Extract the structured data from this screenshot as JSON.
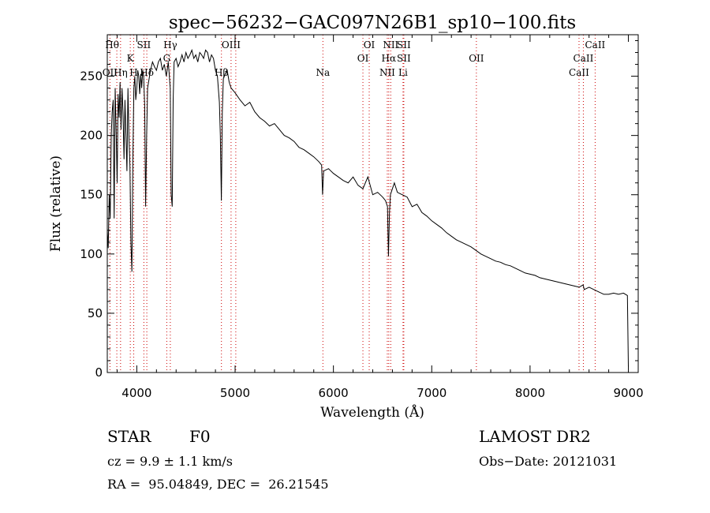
{
  "chart_data": {
    "type": "line",
    "title": "spec−56232−GAC097N26B1_sp10−100.fits",
    "xlabel": "Wavelength (Å)",
    "ylabel": "Flux (relative)",
    "xlim": [
      3700,
      9100
    ],
    "ylim": [
      0,
      285
    ],
    "xticks": [
      4000,
      5000,
      6000,
      7000,
      8000,
      9000
    ],
    "yticks": [
      0,
      50,
      100,
      150,
      200,
      250
    ],
    "grid": false,
    "series": [
      {
        "x": [
          3700,
          3710,
          3720,
          3730,
          3740,
          3750,
          3760,
          3770,
          3780,
          3790,
          3800,
          3810,
          3820,
          3830,
          3840,
          3850,
          3860,
          3870,
          3880,
          3890,
          3900,
          3910,
          3920,
          3930,
          3940,
          3950,
          3960,
          3970,
          3980,
          3990,
          4000,
          4010,
          4020,
          4030,
          4040,
          4050,
          4060,
          4070,
          4080,
          4090,
          4100,
          4110,
          4120,
          4140,
          4160,
          4180,
          4200,
          4220,
          4240,
          4260,
          4280,
          4300,
          4320,
          4340,
          4350,
          4360,
          4370,
          4380,
          4400,
          4420,
          4440,
          4460,
          4480,
          4500,
          4520,
          4540,
          4560,
          4580,
          4600,
          4620,
          4640,
          4660,
          4680,
          4700,
          4720,
          4740,
          4760,
          4780,
          4800,
          4820,
          4840,
          4850,
          4860,
          4870,
          4880,
          4900,
          4920,
          4940,
          4960,
          4980,
          5000,
          5050,
          5100,
          5150,
          5200,
          5250,
          5300,
          5350,
          5400,
          5450,
          5500,
          5550,
          5600,
          5650,
          5700,
          5750,
          5800,
          5850,
          5880,
          5890,
          5900,
          5950,
          6000,
          6050,
          6100,
          6150,
          6200,
          6250,
          6300,
          6350,
          6400,
          6450,
          6500,
          6530,
          6550,
          6560,
          6570,
          6580,
          6600,
          6620,
          6650,
          6700,
          6750,
          6800,
          6850,
          6900,
          6950,
          7000,
          7050,
          7100,
          7150,
          7200,
          7250,
          7300,
          7350,
          7400,
          7450,
          7500,
          7550,
          7600,
          7650,
          7700,
          7750,
          7800,
          7850,
          7900,
          7950,
          8000,
          8050,
          8100,
          8150,
          8200,
          8250,
          8300,
          8350,
          8400,
          8450,
          8500,
          8540,
          8550,
          8600,
          8650,
          8700,
          8750,
          8800,
          8850,
          8900,
          8950,
          8990,
          9000
        ],
        "y": [
          120,
          105,
          150,
          130,
          200,
          220,
          230,
          130,
          240,
          205,
          160,
          235,
          215,
          245,
          205,
          240,
          220,
          180,
          230,
          200,
          170,
          240,
          200,
          175,
          110,
          85,
          180,
          240,
          250,
          230,
          240,
          255,
          250,
          235,
          252,
          240,
          255,
          250,
          225,
          140,
          200,
          240,
          245,
          255,
          262,
          258,
          255,
          262,
          265,
          255,
          260,
          250,
          262,
          240,
          150,
          140,
          230,
          262,
          265,
          258,
          262,
          268,
          262,
          270,
          265,
          268,
          272,
          265,
          268,
          262,
          270,
          268,
          265,
          272,
          270,
          262,
          268,
          265,
          255,
          250,
          228,
          200,
          145,
          220,
          248,
          252,
          255,
          245,
          240,
          238,
          236,
          230,
          225,
          228,
          220,
          215,
          212,
          208,
          210,
          205,
          200,
          198,
          195,
          190,
          188,
          185,
          182,
          178,
          175,
          150,
          170,
          172,
          168,
          165,
          162,
          160,
          165,
          158,
          155,
          165,
          150,
          152,
          148,
          145,
          140,
          98,
          135,
          150,
          155,
          160,
          152,
          150,
          148,
          140,
          142,
          135,
          132,
          128,
          125,
          122,
          118,
          115,
          112,
          110,
          108,
          106,
          103,
          100,
          98,
          96,
          94,
          93,
          91,
          90,
          88,
          86,
          84,
          83,
          82,
          80,
          79,
          78,
          77,
          76,
          75,
          74,
          73,
          72,
          74,
          70,
          72,
          70,
          68,
          66,
          66,
          67,
          66,
          67,
          65,
          5
        ]
      }
    ],
    "lines": [
      {
        "wl": 3727,
        "labels": [
          {
            "text": "OII",
            "row": 3,
            "dx": 0
          }
        ]
      },
      {
        "wl": 3797,
        "labels": [
          {
            "text": "Hθ",
            "row": 1,
            "dx": -6
          }
        ]
      },
      {
        "wl": 3835,
        "labels": [
          {
            "text": "Hη",
            "row": 3,
            "dx": 0
          }
        ]
      },
      {
        "wl": 3934,
        "labels": [
          {
            "text": "K",
            "row": 2,
            "dx": 0
          }
        ]
      },
      {
        "wl": 3969,
        "labels": [
          {
            "text": "H",
            "row": 3,
            "dx": 0
          }
        ]
      },
      {
        "wl": 4072,
        "labels": [
          {
            "text": "SII",
            "row": 1,
            "dx": 0
          }
        ]
      },
      {
        "wl": 4102,
        "labels": [
          {
            "text": "Hδ",
            "row": 3,
            "dx": 0
          }
        ]
      },
      {
        "wl": 4305,
        "labels": [
          {
            "text": "G",
            "row": 2,
            "dx": 0
          }
        ]
      },
      {
        "wl": 4341,
        "labels": [
          {
            "text": "Hγ",
            "row": 1,
            "dx": 0
          },
          {
            "text": "",
            "row": 3,
            "dx": 0
          }
        ]
      },
      {
        "wl": 4861,
        "labels": [
          {
            "text": "Hβ",
            "row": 3,
            "dx": 0
          }
        ]
      },
      {
        "wl": 4959,
        "labels": [
          {
            "text": "OIII",
            "row": 1,
            "dx": 0
          }
        ]
      },
      {
        "wl": 5007,
        "labels": []
      },
      {
        "wl": 5893,
        "labels": [
          {
            "text": "Na",
            "row": 3,
            "dx": 0
          }
        ]
      },
      {
        "wl": 6300,
        "labels": [
          {
            "text": "OI",
            "row": 2,
            "dx": 0
          }
        ]
      },
      {
        "wl": 6364,
        "labels": [
          {
            "text": "OI",
            "row": 1,
            "dx": 0
          }
        ]
      },
      {
        "wl": 6548,
        "labels": [
          {
            "text": "NII",
            "row": 3,
            "dx": 0
          }
        ]
      },
      {
        "wl": 6563,
        "labels": [
          {
            "text": "Hα",
            "row": 2,
            "dx": 0
          }
        ]
      },
      {
        "wl": 6583,
        "labels": [
          {
            "text": "NII",
            "row": 1,
            "dx": 0
          }
        ]
      },
      {
        "wl": 6716,
        "labels": [
          {
            "text": "SII",
            "row": 1,
            "dx": 0
          },
          {
            "text": "SII",
            "row": 2,
            "dx": 0
          }
        ]
      },
      {
        "wl": 6708,
        "labels": [
          {
            "text": "Li",
            "row": 3,
            "dx": 0
          }
        ]
      },
      {
        "wl": 7454,
        "labels": [
          {
            "text": "OII",
            "row": 2,
            "dx": 0
          }
        ]
      },
      {
        "wl": 8498,
        "labels": [
          {
            "text": "CaII",
            "row": 3,
            "dx": 0
          }
        ]
      },
      {
        "wl": 8542,
        "labels": [
          {
            "text": "CaII",
            "row": 2,
            "dx": 0
          }
        ]
      },
      {
        "wl": 8662,
        "labels": [
          {
            "text": "CaII",
            "row": 1,
            "dx": 0
          }
        ]
      }
    ]
  },
  "info": {
    "class_label": "STAR",
    "subclass": "F0",
    "survey": "LAMOST DR2",
    "cz": "cz = 9.9 ± 1.1 km/s",
    "obs_date": "Obs−Date: 20121031",
    "coords": "RA =  95.04849, DEC =  26.21545"
  }
}
